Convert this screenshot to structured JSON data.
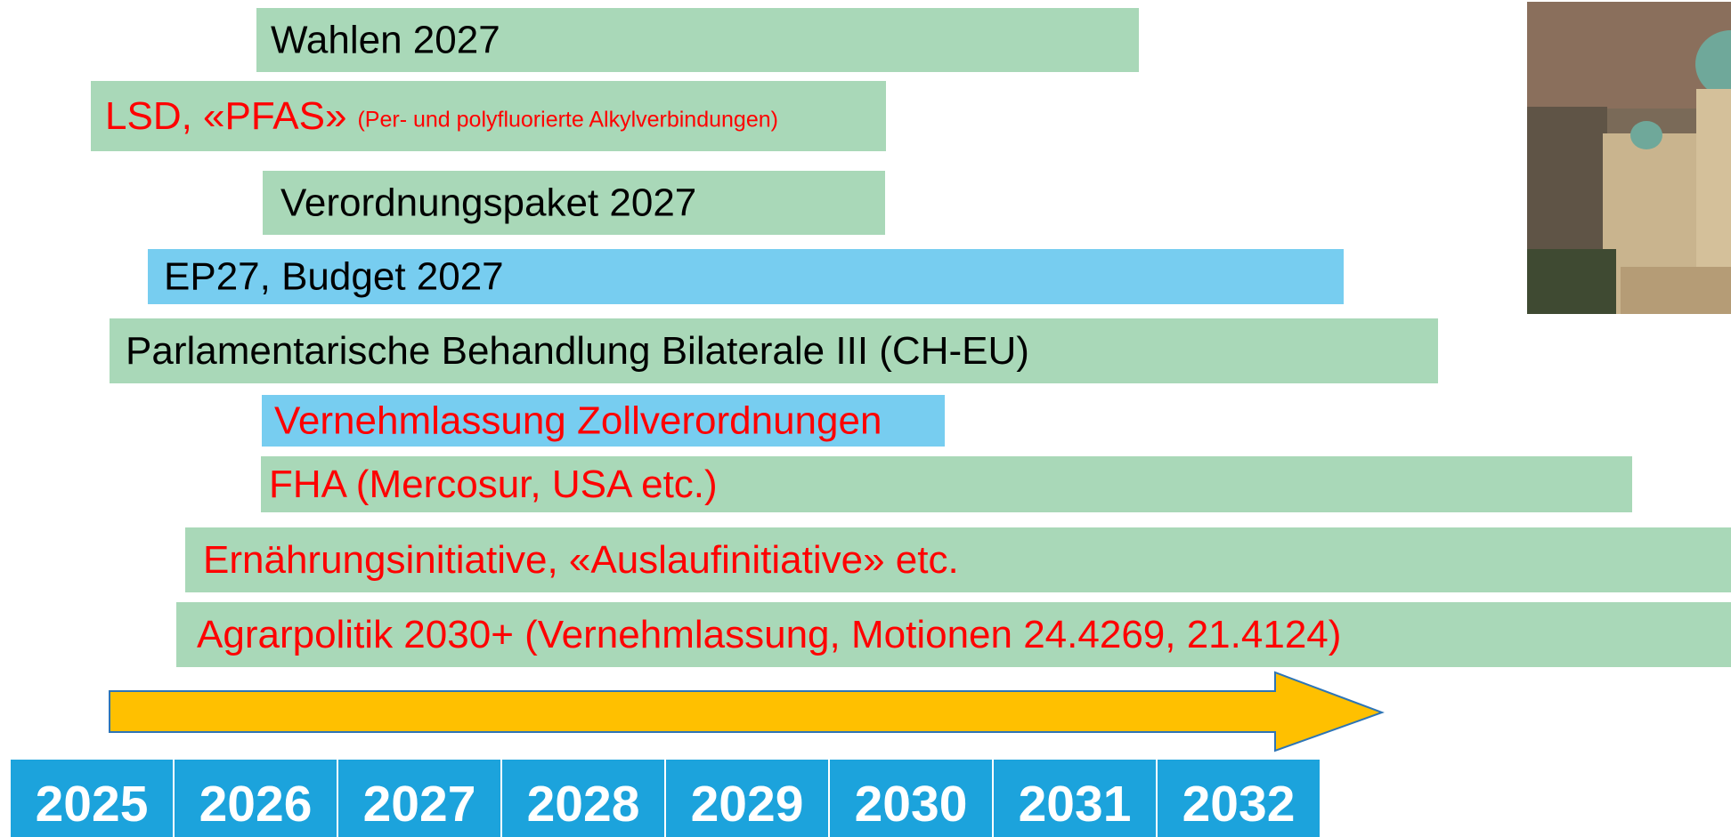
{
  "bars": [
    {
      "label": "Wahlen 2027"
    },
    {
      "label": "LSD, «PFAS»",
      "note": "(Per- und polyfluorierte Alkylverbindungen)"
    },
    {
      "label": "Verordnungspaket 2027"
    },
    {
      "label": "EP27, Budget 2027"
    },
    {
      "label": "Parlamentarische Behandlung Bilaterale III (CH-EU)"
    },
    {
      "label": "Vernehmlassung Zollverordnungen"
    },
    {
      "label": "FHA (Mercosur, USA etc.)"
    },
    {
      "label": "Ernährungsinitiative, «Auslaufinitiative» etc."
    },
    {
      "label": "Agrarpolitik 2030+ (Vernehmlassung, Motionen 24.4269, 21.4124)"
    }
  ],
  "years": [
    "2025",
    "2026",
    "2027",
    "2028",
    "2029",
    "2030",
    "2031",
    "2032"
  ]
}
